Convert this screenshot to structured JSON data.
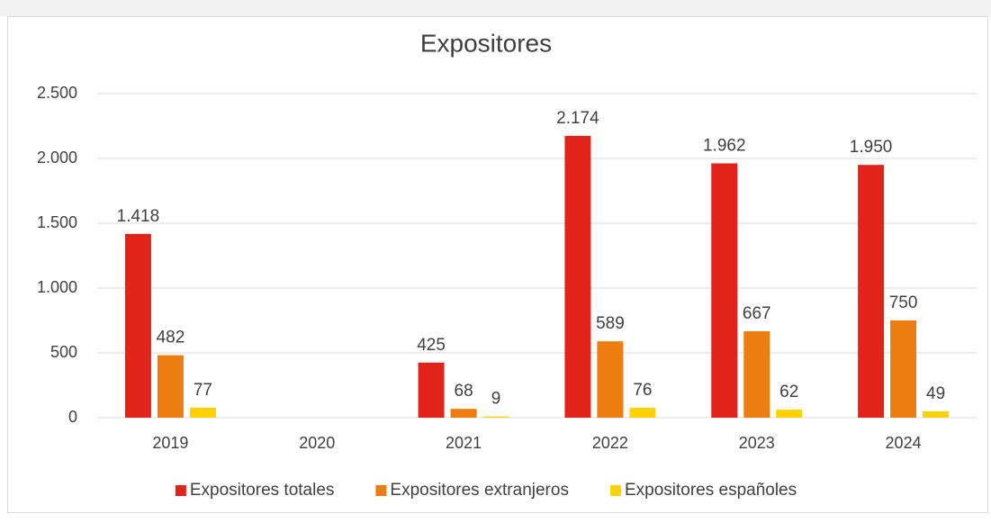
{
  "chart_data": {
    "type": "bar",
    "title": "Expositores",
    "categories": [
      "2019",
      "2020",
      "2021",
      "2022",
      "2023",
      "2024"
    ],
    "series": [
      {
        "name": "Expositores totales",
        "color": "#e2231a",
        "values": [
          1418,
          null,
          425,
          2174,
          1962,
          1950
        ],
        "value_labels": [
          "1.418",
          null,
          "425",
          "2.174",
          "1.962",
          "1.950"
        ]
      },
      {
        "name": "Expositores extranjeros",
        "color": "#ee7d11",
        "values": [
          482,
          null,
          68,
          589,
          667,
          750
        ],
        "value_labels": [
          "482",
          null,
          "68",
          "589",
          "667",
          "750"
        ]
      },
      {
        "name": "Expositores españoles",
        "color": "#ffd200",
        "values": [
          77,
          null,
          9,
          76,
          62,
          49
        ],
        "value_labels": [
          "77",
          null,
          "9",
          "76",
          "62",
          "49"
        ]
      }
    ],
    "ylim": [
      0,
      2500
    ],
    "yticks": [
      0,
      500,
      {
        "value": 1000,
        "label": "1.000"
      },
      {
        "value": 1500,
        "label": "1.500"
      },
      {
        "value": 2000,
        "label": "2.000"
      },
      {
        "value": 2500,
        "label": "2.500"
      }
    ],
    "grid": true,
    "legend": "bottom"
  }
}
